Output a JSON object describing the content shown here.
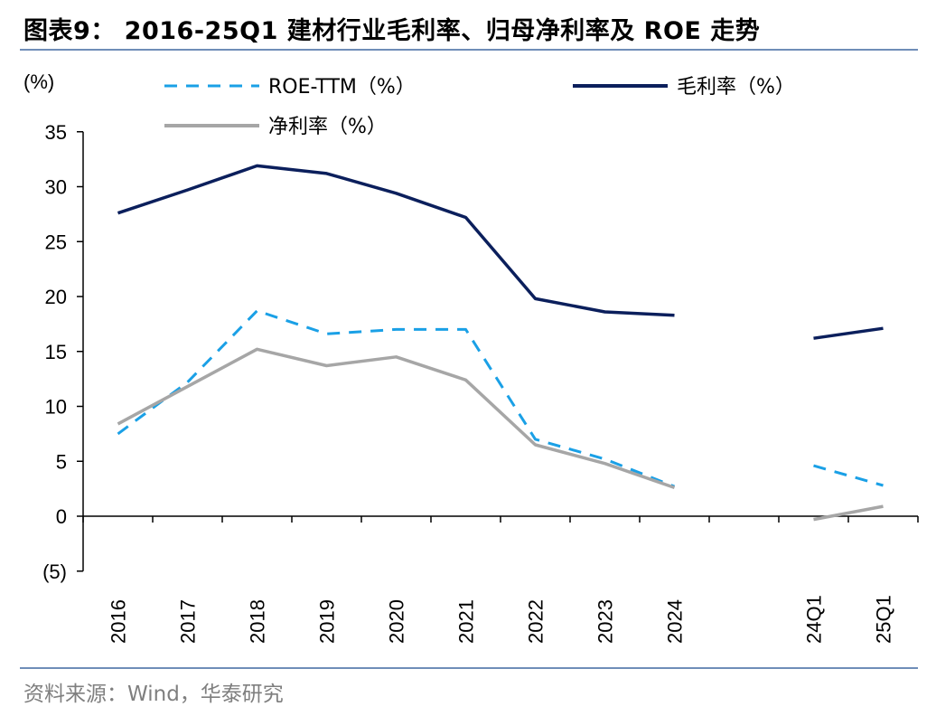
{
  "header": {
    "title": "图表9： 2016-25Q1 建材行业毛利率、归母净利率及 ROE 走势"
  },
  "footer": {
    "source": "资料来源：Wind，华泰研究"
  },
  "chart_data": {
    "type": "line",
    "yunit": "(%)",
    "ylim": [
      -5,
      35
    ],
    "yticks": [
      -5,
      0,
      5,
      10,
      15,
      20,
      25,
      30,
      35
    ],
    "ytick_labels": [
      "(5)",
      "0",
      "5",
      "10",
      "15",
      "20",
      "25",
      "30",
      "35"
    ],
    "categories": [
      "2016",
      "2017",
      "2018",
      "2019",
      "2020",
      "2021",
      "2022",
      "2023",
      "2024",
      "",
      "24Q1",
      "25Q1"
    ],
    "grid": false,
    "legend_position": "top",
    "series": [
      {
        "name": "ROE-TTM（%）",
        "color": "#1aa0e6",
        "dash": true,
        "values": [
          7.5,
          12.2,
          18.7,
          16.6,
          17.0,
          17.0,
          7.0,
          5.2,
          2.7,
          null,
          4.6,
          2.8
        ]
      },
      {
        "name": "毛利率（%）",
        "color": "#0b1f5c",
        "dash": false,
        "values": [
          27.6,
          29.7,
          31.9,
          31.2,
          29.4,
          27.2,
          19.8,
          18.6,
          18.3,
          null,
          16.2,
          17.1
        ]
      },
      {
        "name": "净利率（%）",
        "color": "#a6a6a6",
        "dash": false,
        "values": [
          8.4,
          11.8,
          15.2,
          13.7,
          14.5,
          12.4,
          6.5,
          4.8,
          2.6,
          null,
          -0.3,
          0.9
        ]
      }
    ]
  }
}
